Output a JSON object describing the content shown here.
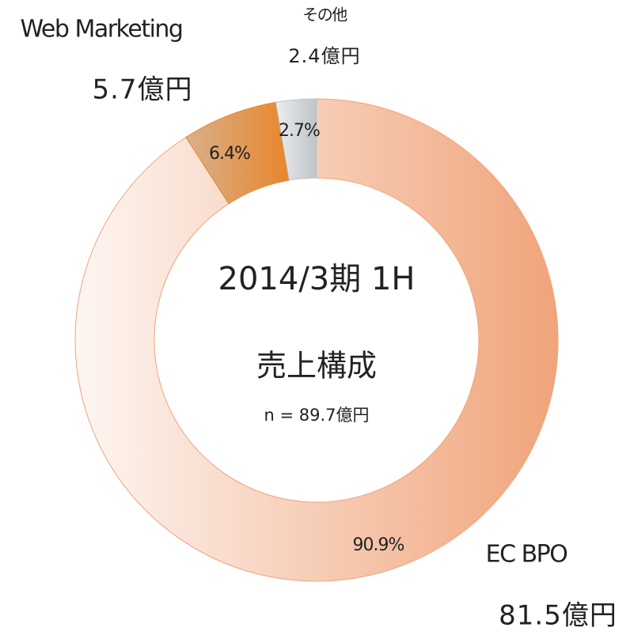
{
  "chart_data": {
    "type": "donut",
    "center_title": "2014/3期 1H",
    "center_subtitle": "売上構成",
    "center_note": "n = 89.7億円",
    "categories": [
      "EC BPO",
      "Web Marketing",
      "その他"
    ],
    "values": [
      90.9,
      6.4,
      2.7
    ],
    "value_labels": [
      "90.9%",
      "6.4%",
      "2.7%"
    ],
    "amount_labels": [
      "81.5億円",
      "5.7億円",
      "2.4億円"
    ],
    "colors": [
      "#f0a47a",
      "#e8862a",
      "#bfc3c8"
    ]
  }
}
